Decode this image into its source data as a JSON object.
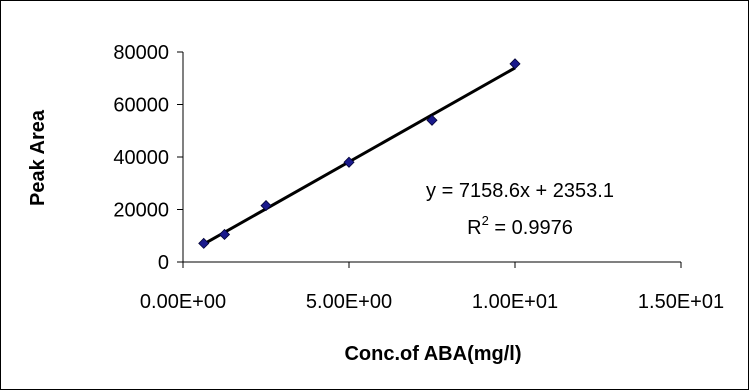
{
  "chart_data": {
    "type": "scatter",
    "xlabel": "Conc.of ABA(mg/l)",
    "ylabel": "Peak Area",
    "xlim": [
      0,
      15
    ],
    "ylim": [
      0,
      80000
    ],
    "x_ticks": [
      0,
      5,
      10,
      15
    ],
    "x_tick_labels": [
      "0.00E+00",
      "5.00E+00",
      "1.00E+01",
      "1.50E+01"
    ],
    "y_ticks": [
      0,
      20000,
      40000,
      60000,
      80000
    ],
    "y_tick_labels": [
      "0",
      "20000",
      "40000",
      "60000",
      "80000"
    ],
    "series": [
      {
        "x": [
          0.625,
          1.25,
          2.5,
          5.0,
          7.5,
          10.0
        ],
        "y": [
          7100,
          10500,
          21500,
          38000,
          54000,
          75500
        ],
        "marker": "diamond",
        "color": "#1a1a8c"
      }
    ],
    "trendline": {
      "slope": 7158.6,
      "intercept": 2353.1,
      "x_range": [
        0.625,
        10.0
      ],
      "color": "#000000"
    },
    "equation": "y = 7158.6x + 2353.1",
    "r_squared_prefix": "R",
    "r_squared_sup": "2",
    "r_squared_value": " = 0.9976",
    "grid": false,
    "legend": "none"
  }
}
